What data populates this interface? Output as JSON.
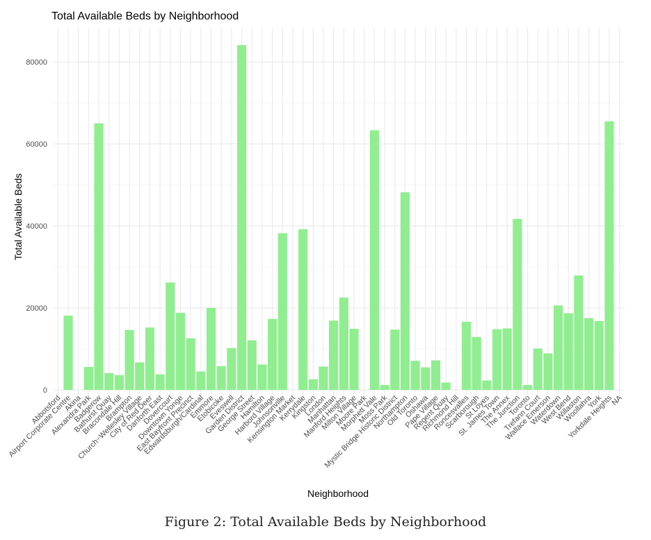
{
  "caption": "Figure 2: Total Available Beds by Neighborhood",
  "chart_data": {
    "type": "bar",
    "title": "Total Available Beds by Neighborhood",
    "xlabel": "Neighborhood",
    "ylabel": "Total Available Beds",
    "ylim": [
      0,
      87000
    ],
    "yticks": [
      0,
      20000,
      40000,
      60000,
      80000
    ],
    "grid": true,
    "color": "#90ee90",
    "categories": [
      "Abbotsford",
      "Airport Corporate Centre",
      "Akina",
      "Alexandra Park",
      "Badgerow",
      "Bathurst Quay",
      "Bracondale Hill",
      "Brampton",
      "Church−Wellesley Village",
      "City of Red Deer",
      "Danforth East",
      "Dovercourt",
      "Downtown Yonge",
      "East Bayfront Precinct",
      "Edwardsburgh/Cardinal",
      "Emmore",
      "Etobicoke",
      "Eveswell",
      "Garden District",
      "George Street",
      "Hamilton",
      "Harbord Village",
      "Johnsonville",
      "Kensington Market",
      "Kerrydale",
      "Kingston",
      "London",
      "Manhattan",
      "Manford Heights",
      "Milton Village",
      "Moore Park",
      "Morphett Vale",
      "Moss Park",
      "Mystic Bridge Historic District",
      "Northampton",
      "Old Toronto",
      "Oshawa",
      "Pape Village",
      "Regent Quay",
      "Richmond Hill",
      "Roncesvalles",
      "Scarborough",
      "St Loyes",
      "St. James Town",
      "The Annex",
      "The Junction",
      "Toronto",
      "Trefann Court",
      "Wallace Emerson",
      "Waterdown",
      "West Bend",
      "Willaston",
      "Woollahra",
      "York",
      "Yorkdale Heights",
      "NA"
    ],
    "values": [
      0,
      18100,
      0,
      5600,
      65000,
      4100,
      3600,
      14600,
      6700,
      15200,
      3800,
      26200,
      18800,
      12600,
      4500,
      20000,
      5800,
      10200,
      84100,
      12100,
      6200,
      17300,
      38200,
      0,
      39200,
      2600,
      5700,
      16900,
      22500,
      14900,
      0,
      63300,
      1200,
      14700,
      48200,
      7100,
      5500,
      7200,
      1800,
      0,
      16600,
      12900,
      2300,
      14800,
      15000,
      41700,
      1200,
      10100,
      8900,
      20600,
      18700,
      27900,
      17500,
      16800,
      65500,
      0
    ]
  }
}
